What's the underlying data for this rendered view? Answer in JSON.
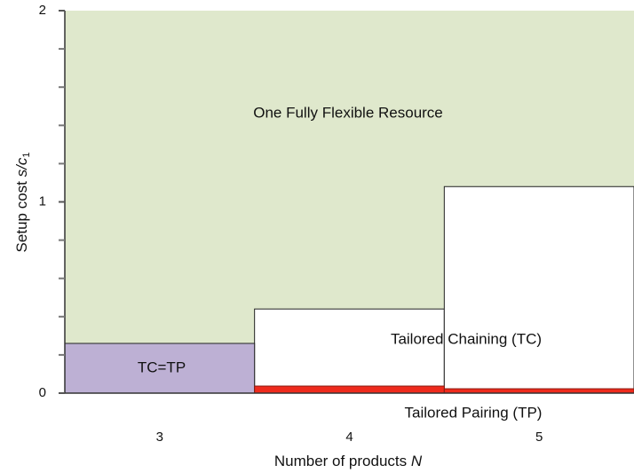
{
  "chart_data": {
    "type": "region",
    "x": [
      3,
      4,
      5
    ],
    "xlim": [
      2.5,
      5.5
    ],
    "xticks": [
      3,
      4,
      5
    ],
    "ylim": [
      0,
      2
    ],
    "yticks": [
      0,
      1,
      2
    ],
    "yminor_ticks": [
      0.2,
      0.4,
      0.6,
      0.8,
      1.2,
      1.4,
      1.6,
      1.8
    ],
    "xlabel": {
      "text": "Number of products",
      "var": "N"
    },
    "ylabel": {
      "text": "Setup cost",
      "var": "s/c",
      "sub": "1"
    },
    "background": {
      "name": "One Fully Flexible Resource",
      "color": "#dfe8cc"
    },
    "series": [
      {
        "name": "Tailored Chaining (TC)",
        "color": "#ffffff",
        "values": [
          null,
          0.44,
          1.08
        ]
      },
      {
        "name": "TC=TP",
        "color": "#bdb0d4",
        "values": [
          0.26,
          null,
          null
        ]
      },
      {
        "name": "Tailored Pairing (TP)",
        "color": "#ee2a1c",
        "values": [
          null,
          0.037,
          0.023
        ]
      }
    ]
  }
}
